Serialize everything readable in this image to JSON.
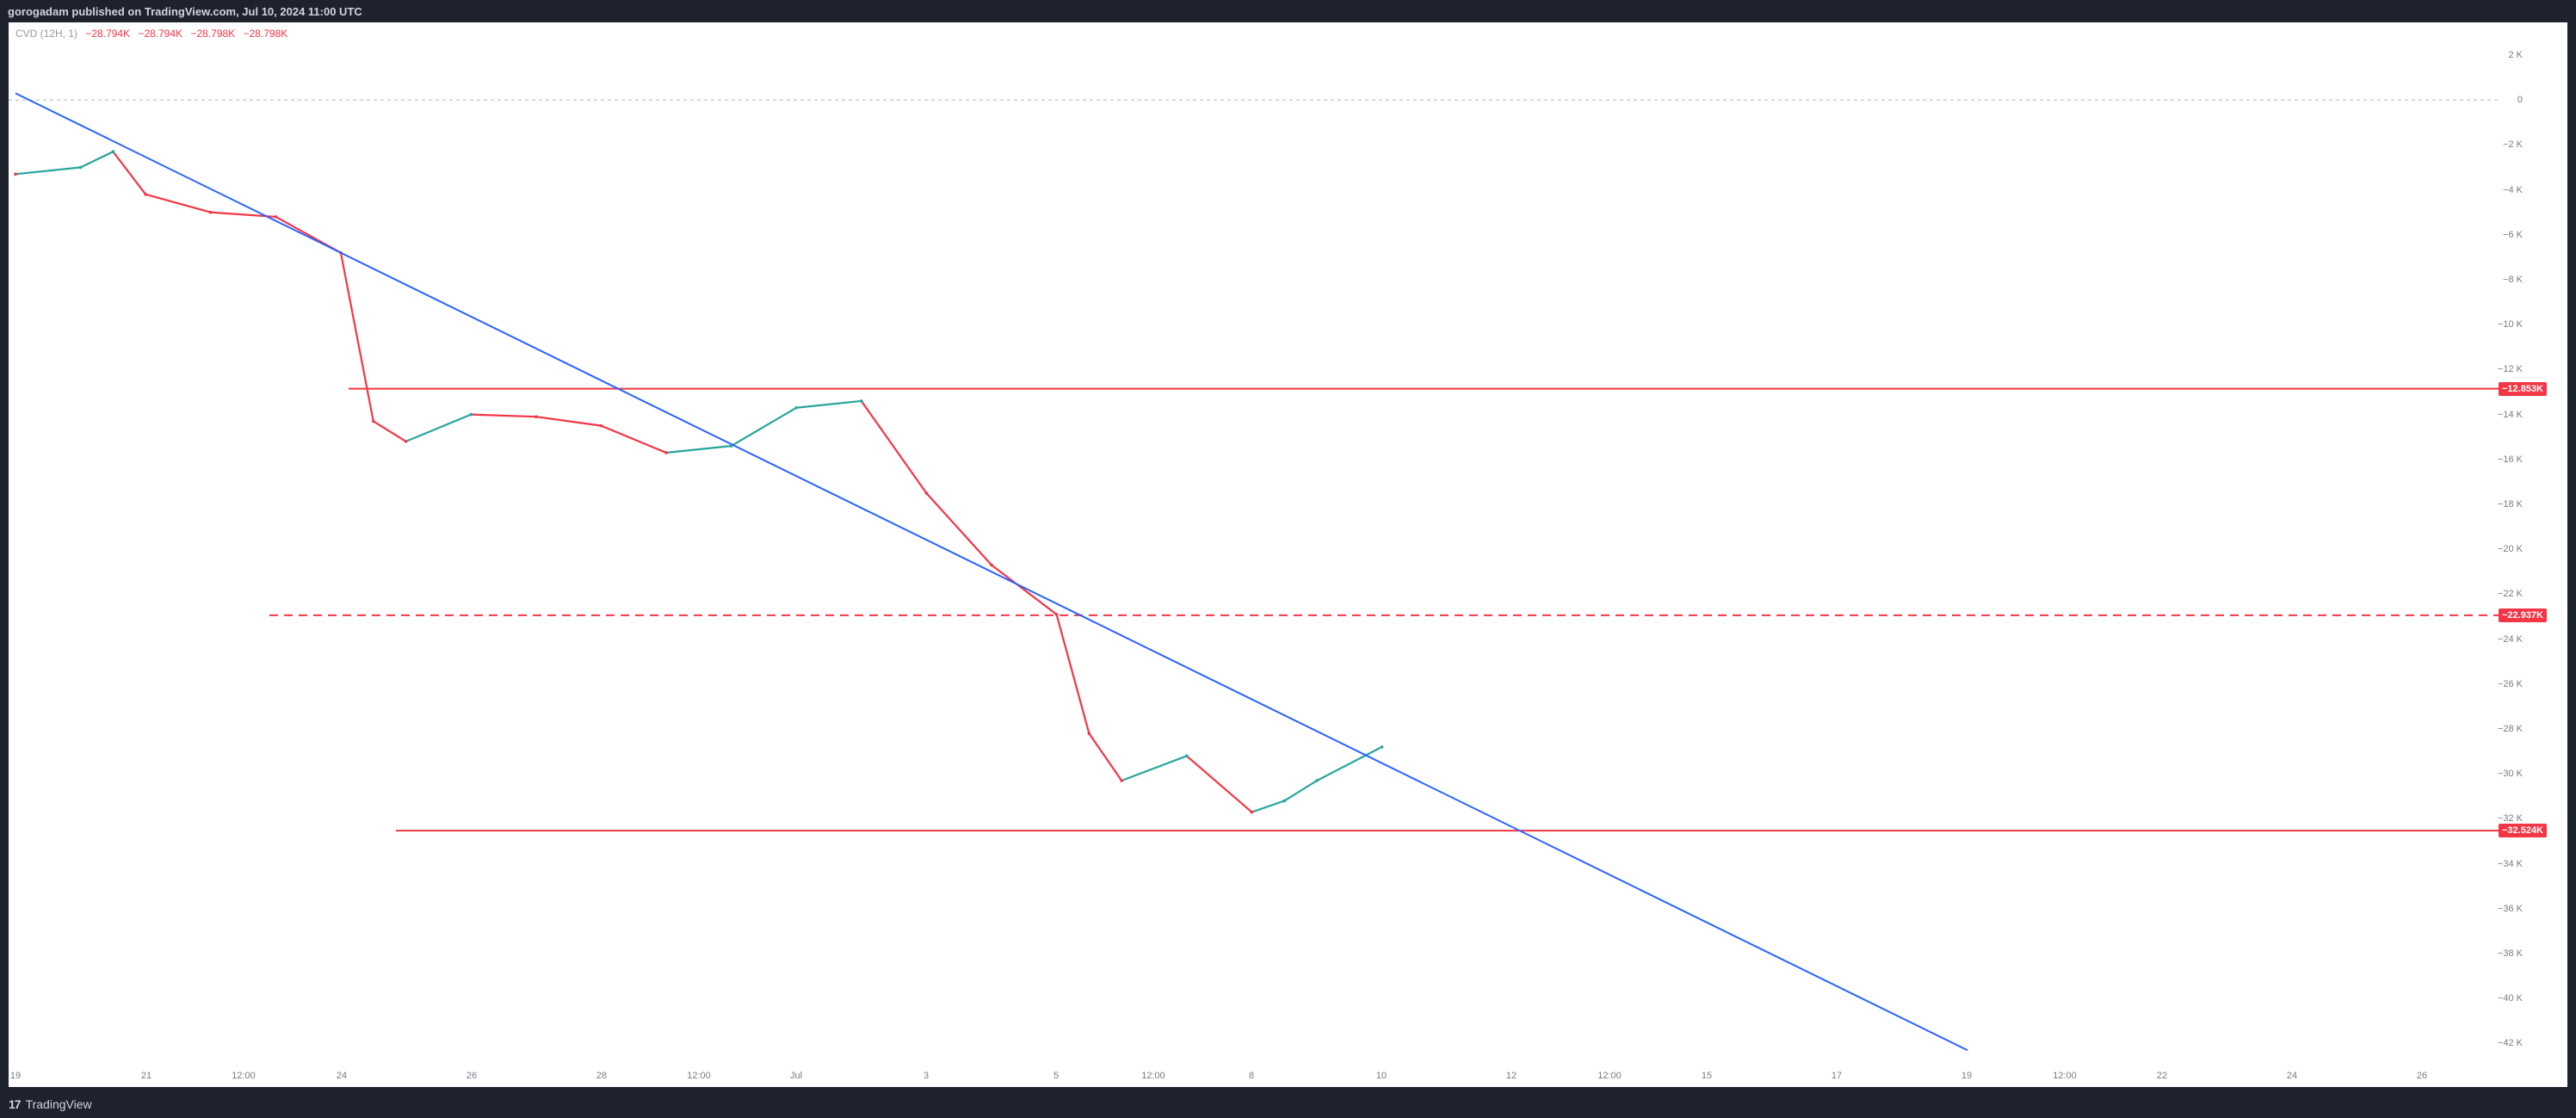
{
  "header": {
    "published": "gorogadam published on TradingView.com, Jul 10, 2024 11:00 UTC"
  },
  "legend": {
    "indicator": "CVD (12H, 1)",
    "values": [
      "−28.794K",
      "−28.794K",
      "−28.798K",
      "−28.798K"
    ]
  },
  "footer": {
    "logo_mark": "17",
    "brand": "TradingView"
  },
  "colors": {
    "up": "#26a69a",
    "down": "#f23645",
    "trendline": "#2962ff",
    "level": "#f23645",
    "zero": "#b2b5be"
  },
  "y_axis": {
    "labels": [
      "2 K",
      "0",
      "−2 K",
      "−4 K",
      "−6 K",
      "−8 K",
      "−10 K",
      "−12 K",
      "−14 K",
      "−16 K",
      "−18 K",
      "−20 K",
      "−22 K",
      "−24 K",
      "−26 K",
      "−28 K",
      "−30 K",
      "−32 K",
      "−34 K",
      "−36 K",
      "−38 K",
      "−40 K",
      "−42 K"
    ]
  },
  "x_axis": {
    "labels": [
      "19",
      "21",
      "12:00",
      "24",
      "26",
      "28",
      "12:00",
      "Jul",
      "3",
      "5",
      "12:00",
      "8",
      "10",
      "12",
      "12:00",
      "15",
      "17",
      "19",
      "12:00",
      "22",
      "24",
      "26"
    ]
  },
  "levels": [
    {
      "label": "−12.853K",
      "value": -12.853,
      "style": "solid"
    },
    {
      "label": "−22.937K",
      "value": -22.937,
      "style": "dashed"
    },
    {
      "label": "−32.524K",
      "value": -32.524,
      "style": "solid"
    }
  ],
  "chart_data": {
    "type": "line",
    "title": "",
    "ylim": [
      -42,
      2
    ],
    "zero_line": true,
    "series": [
      {
        "name": "CVD (12H, 1)",
        "x": [
          "Jun 19",
          "Jun 20",
          "Jun 20 12:00",
          "Jun 21",
          "Jun 22",
          "Jun 23",
          "Jun 24",
          "Jun 24 12:00",
          "Jun 25",
          "Jun 26",
          "Jun 27",
          "Jun 28",
          "Jun 29",
          "Jun 30",
          "Jul 1",
          "Jul 2",
          "Jul 3",
          "Jul 4",
          "Jul 5",
          "Jul 5 12:00",
          "Jul 6",
          "Jul 7",
          "Jul 8",
          "Jul 8 12:00",
          "Jul 9",
          "Jul 10"
        ],
        "values": [
          -3.3,
          -3.0,
          -2.3,
          -4.2,
          -5.0,
          -5.2,
          -6.8,
          -14.3,
          -15.2,
          -14.0,
          -14.1,
          -14.5,
          -15.7,
          -15.4,
          -13.7,
          -13.4,
          -17.5,
          -20.7,
          -22.9,
          -28.2,
          -30.3,
          -29.2,
          -31.7,
          -31.2,
          -30.3,
          -28.8
        ]
      }
    ],
    "trendline": {
      "start": {
        "x": "Jun 19",
        "y": 0.3
      },
      "end": {
        "x": "Jul 19",
        "y": -42.3
      }
    },
    "annotations": [
      "−12.853K",
      "−22.937K",
      "−32.524K"
    ]
  }
}
